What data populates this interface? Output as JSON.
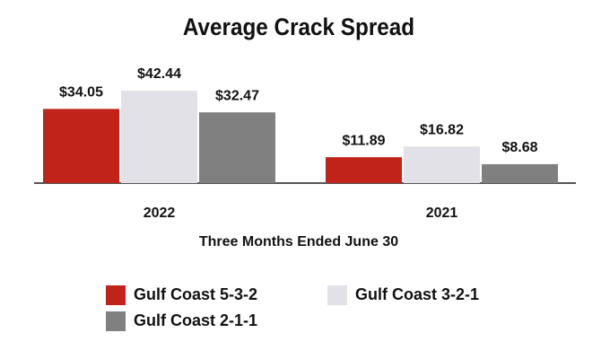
{
  "chart_data": {
    "type": "bar",
    "title": "Average Crack Spread",
    "x_label": "Three Months Ended June 30",
    "categories": [
      "2022",
      "2021"
    ],
    "series": [
      {
        "name": "Gulf Coast 5-3-2",
        "color": "#c1231b",
        "values": [
          34.05,
          11.89
        ],
        "value_labels": [
          "$34.05",
          "$11.89"
        ]
      },
      {
        "name": "Gulf Coast 3-2-1",
        "color": "#e1e1e7",
        "values": [
          42.44,
          16.82
        ],
        "value_labels": [
          "$42.44",
          "$16.82"
        ]
      },
      {
        "name": "Gulf Coast 2-1-1",
        "color": "#808080",
        "values": [
          32.47,
          8.68
        ],
        "value_labels": [
          "$32.47",
          "$8.68"
        ]
      }
    ]
  }
}
